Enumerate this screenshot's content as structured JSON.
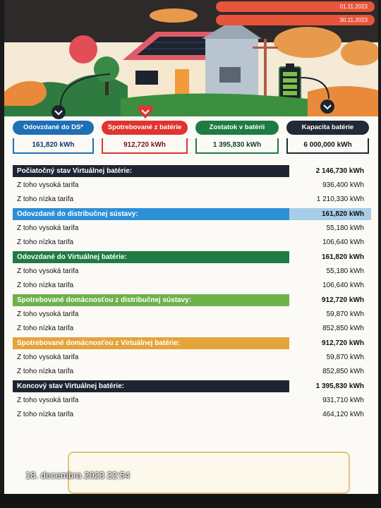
{
  "header": {
    "date_from": "01.11.2023",
    "date_to": "30.11.2023"
  },
  "cards": [
    {
      "title": "Odovzdané do DS*",
      "value": "161,820 kWh",
      "color": "#1f6fb5"
    },
    {
      "title": "Spotrebované z batérie",
      "value": "912,720 kWh",
      "color": "#e0342e"
    },
    {
      "title": "Zostatok v batérii",
      "value": "1 395,830 kWh",
      "color": "#1e7b43"
    },
    {
      "title": "Kapacita batérie",
      "value": "6 000,000 kWh",
      "color": "#212a36"
    }
  ],
  "table": {
    "sections": [
      {
        "label": "Počiatočný stav Virtuálnej batérie:",
        "value": "2 146,730 kWh",
        "high_label": "Z toho vysoká tarifa",
        "high": "936,400 kWh",
        "low_label": "Z toho nízka tarifa",
        "low": "1 210,330 kWh"
      },
      {
        "label": "Odovzdané do distribučnej sústavy:",
        "value": "161,820 kWh",
        "high_label": "Z toho vysoká tarifa",
        "high": "55,180 kWh",
        "low_label": "Z toho nízka tarifa",
        "low": "106,640 kWh"
      },
      {
        "label": "Odovzdané do Virtuálnej batérie:",
        "value": "161,820 kWh",
        "high_label": "Z toho vysoká tarifa",
        "high": "55,180 kWh",
        "low_label": "Z toho nízka tarifa",
        "low": "106,640 kWh"
      },
      {
        "label": "Spotrebované domácnosťou z distribučnej sústavy:",
        "value": "912,720 kWh",
        "high_label": "Z toho vysoká tarifa",
        "high": "59,870 kWh",
        "low_label": "Z toho nízka tarifa",
        "low": "852,850 kWh"
      },
      {
        "label": "Spotrebované domácnosťou z Virtuálnej batérie:",
        "value": "912,720 kWh",
        "high_label": "Z toho vysoká tarifa",
        "high": "59,870 kWh",
        "low_label": "Z toho nízka tarifa",
        "low": "852,850 kWh"
      },
      {
        "label": "Koncový stav Virtuálnej batérie:",
        "value": "1 395,830 kWh",
        "high_label": "Z toho vysoká tarifa",
        "high": "931,710 kWh",
        "low_label": "Z toho nízka tarifa",
        "low": "464,120 kWh"
      }
    ]
  },
  "photo_timestamp": "18. decembra 2023 22:54",
  "icons": {
    "card_marker_1": "chevron-down-icon",
    "card_marker_2": "heart-chevron-icon",
    "card_marker_4": "chevron-down-icon",
    "battery": "battery-icon",
    "solar_house": "solar-house-illustration"
  }
}
